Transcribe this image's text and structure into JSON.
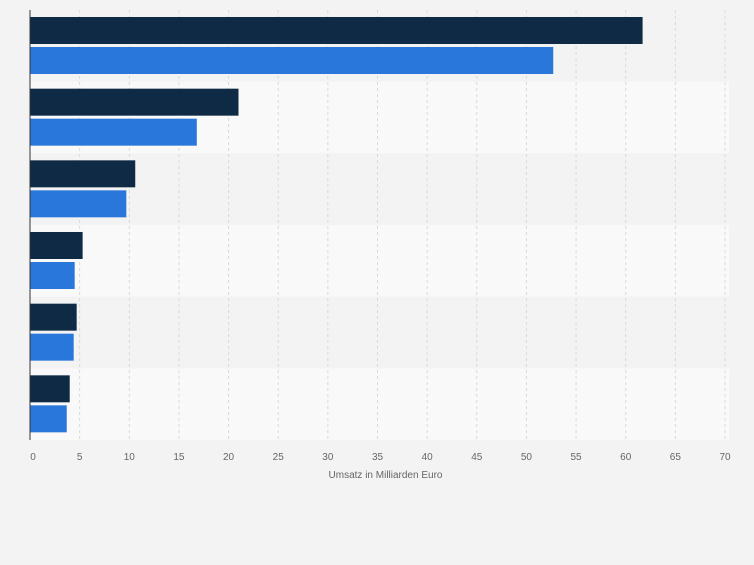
{
  "chart_data": {
    "type": "bar",
    "orientation": "horizontal",
    "title": "",
    "ylabel": "",
    "xlabel": "Umsatz in Milliarden Euro",
    "xlim": [
      0,
      70
    ],
    "x_ticks": [
      "0",
      "5",
      "10",
      "15",
      "20",
      "25",
      "30",
      "35",
      "40",
      "45",
      "50",
      "55",
      "60",
      "65",
      "70"
    ],
    "grid": "vertical",
    "legend": "none",
    "categories": [
      "",
      "",
      "",
      "",
      "",
      ""
    ],
    "series": [
      {
        "values": [
          61.7,
          21.0,
          10.6,
          5.3,
          4.7,
          4.0
        ],
        "color": "#0f2a44"
      },
      {
        "values": [
          52.7,
          16.8,
          9.7,
          4.5,
          4.4,
          3.7
        ],
        "color": "#2a77db"
      }
    ],
    "colors": {
      "background": "#f3f3f3",
      "band_dark": "#f3f3f3",
      "band_light": "#f9f9f9",
      "grid": "#d9d9d9",
      "axis": "#333333",
      "tick_label": "#666666"
    }
  }
}
